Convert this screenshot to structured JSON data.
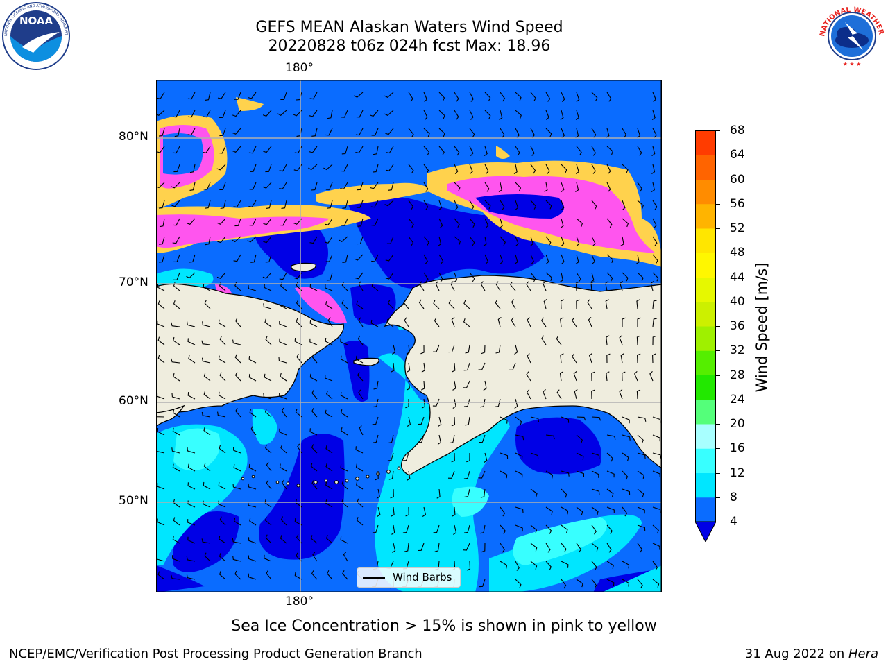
{
  "header": {
    "title_line1": "GEFS MEAN Alaskan Waters Wind Speed",
    "title_line2": "20220828 t06z 024h fcst   Max: 18.96"
  },
  "logos": {
    "left": {
      "name": "NOAA",
      "text": "NOAA"
    },
    "right": {
      "name": "National Weather Service",
      "text": "NATIONAL WEATHER SERVICE"
    }
  },
  "map": {
    "lon_labels": {
      "top": "180°",
      "bottom": "180°"
    },
    "lat_labels": [
      "80°N",
      "70°N",
      "60°N",
      "50°N"
    ],
    "legend_label": "Wind Barbs"
  },
  "colorbar": {
    "label": "Wind Speed [m/s]",
    "ticks": [
      "68",
      "64",
      "60",
      "56",
      "52",
      "48",
      "44",
      "40",
      "36",
      "32",
      "28",
      "24",
      "20",
      "16",
      "12",
      "8",
      "4"
    ],
    "colors_low_to_high": [
      "#0a6cff",
      "#00e6ff",
      "#38ffff",
      "#a8ffff",
      "#54ff7a",
      "#22e800",
      "#55ee00",
      "#9ff000",
      "#ccf000",
      "#e6f800",
      "#fff700",
      "#ffe600",
      "#ffb400",
      "#ff8c00",
      "#ff6400",
      "#ff3c00",
      "#ff0000"
    ],
    "under_color": "#0000e6"
  },
  "caption": "Sea Ice Concentration > 15% is shown in pink to yellow",
  "footer": {
    "left": "NCEP/EMC/Verification Post Processing Product Generation Branch",
    "right_prefix": "31 Aug 2022 on ",
    "right_host": "Hera"
  },
  "colors": {
    "land": "#efedde",
    "ocean_deep": "#0000e6",
    "ocean_mid": "#0a6cff",
    "ocean_light": "#00e6ff",
    "ocean_pale": "#38ffff",
    "ice_pink": "#ff55ee",
    "ice_yellow": "#ffd24d",
    "grid": "#b0b0b0"
  }
}
